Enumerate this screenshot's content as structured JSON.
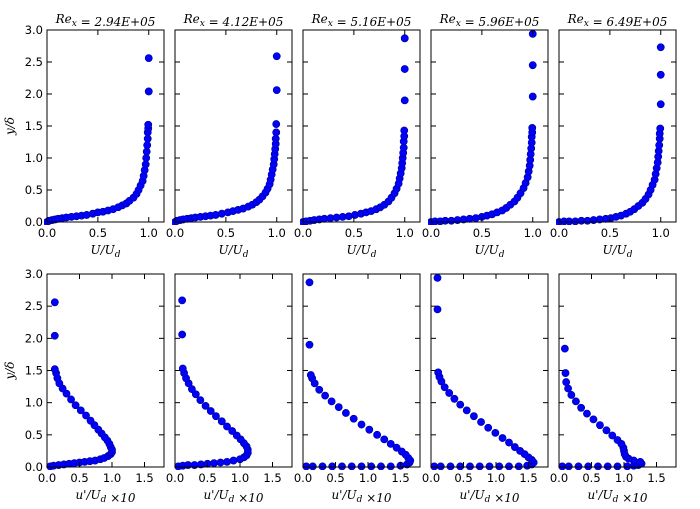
{
  "figure": {
    "colors": {
      "marker_fill": "#0000ff",
      "marker_edge": "#00008b",
      "axes": "#000000",
      "background": "#ffffff"
    }
  },
  "chart_data": [
    {
      "type": "scatter",
      "row": "top",
      "title": "Re_x = 2.94E+05",
      "title_text": "Rex = 2.94E+05",
      "xlabel": "U/U_d",
      "ylabel": "y/δ",
      "xlim": [
        0,
        1.15
      ],
      "ylim": [
        0,
        3.0
      ],
      "xticks": [
        0.0,
        0.5,
        1.0
      ],
      "xtick_labels": [
        "0.0",
        "0.5",
        "1.0"
      ],
      "yticks": [
        0.0,
        0.5,
        1.0,
        1.5,
        2.0,
        2.5,
        3.0
      ],
      "ytick_labels": [
        "0.0",
        "0.5",
        "1.0",
        "1.5",
        "2.0",
        "2.5",
        "3.0"
      ],
      "x": [
        0.0,
        0.02,
        0.05,
        0.08,
        0.11,
        0.15,
        0.19,
        0.24,
        0.29,
        0.34,
        0.39,
        0.45,
        0.5,
        0.55,
        0.6,
        0.65,
        0.7,
        0.74,
        0.78,
        0.81,
        0.85,
        0.88,
        0.9,
        0.92,
        0.94,
        0.95,
        0.96,
        0.97,
        0.975,
        0.98,
        0.985,
        0.99,
        0.99,
        0.995,
        0.995,
        1.0,
        1.0
      ],
      "y": [
        0.0,
        0.02,
        0.03,
        0.04,
        0.05,
        0.06,
        0.07,
        0.08,
        0.09,
        0.1,
        0.11,
        0.13,
        0.15,
        0.16,
        0.18,
        0.2,
        0.23,
        0.26,
        0.29,
        0.33,
        0.38,
        0.44,
        0.5,
        0.57,
        0.64,
        0.72,
        0.81,
        0.9,
        1.0,
        1.1,
        1.2,
        1.3,
        1.4,
        1.46,
        1.52,
        2.04,
        2.56
      ]
    },
    {
      "type": "scatter",
      "row": "top",
      "title": "Re_x = 4.12E+05",
      "title_text": "Rex = 4.12E+05",
      "xlabel": "U/U_d",
      "ylabel": "",
      "xlim": [
        0,
        1.15
      ],
      "ylim": [
        0,
        3.0
      ],
      "xticks": [
        0.0,
        0.5,
        1.0
      ],
      "xtick_labels": [
        "0.0",
        "0.5",
        "1.0"
      ],
      "yticks": [
        0.0,
        0.5,
        1.0,
        1.5,
        2.0,
        2.5,
        3.0
      ],
      "ytick_labels": [],
      "x": [
        0.0,
        0.02,
        0.05,
        0.08,
        0.12,
        0.16,
        0.2,
        0.25,
        0.3,
        0.35,
        0.4,
        0.46,
        0.52,
        0.57,
        0.62,
        0.67,
        0.72,
        0.76,
        0.8,
        0.83,
        0.86,
        0.89,
        0.91,
        0.93,
        0.94,
        0.95,
        0.96,
        0.97,
        0.975,
        0.98,
        0.985,
        0.99,
        0.99,
        0.995,
        0.995,
        1.0,
        1.0
      ],
      "y": [
        0.0,
        0.02,
        0.03,
        0.04,
        0.05,
        0.06,
        0.07,
        0.08,
        0.09,
        0.1,
        0.11,
        0.13,
        0.15,
        0.17,
        0.19,
        0.21,
        0.24,
        0.27,
        0.31,
        0.35,
        0.4,
        0.46,
        0.52,
        0.59,
        0.66,
        0.74,
        0.82,
        0.9,
        0.98,
        1.06,
        1.14,
        1.22,
        1.3,
        1.4,
        1.53,
        2.06,
        2.59
      ]
    },
    {
      "type": "scatter",
      "row": "top",
      "title": "Re_x = 5.16E+05",
      "title_text": "Rex = 5.16E+05",
      "xlabel": "U/U_d",
      "ylabel": "",
      "xlim": [
        0,
        1.15
      ],
      "ylim": [
        0,
        3.0
      ],
      "xticks": [
        0.0,
        0.5,
        1.0
      ],
      "xtick_labels": [
        "0.0",
        "0.5",
        "1.0"
      ],
      "yticks": [
        0.0,
        0.5,
        1.0,
        1.5,
        2.0,
        2.5,
        3.0
      ],
      "ytick_labels": [],
      "x": [
        0.0,
        0.03,
        0.07,
        0.11,
        0.16,
        0.21,
        0.27,
        0.33,
        0.39,
        0.45,
        0.51,
        0.57,
        0.62,
        0.67,
        0.72,
        0.76,
        0.8,
        0.84,
        0.87,
        0.9,
        0.92,
        0.94,
        0.95,
        0.96,
        0.97,
        0.975,
        0.98,
        0.985,
        0.99,
        0.99,
        0.995,
        0.995,
        1.0,
        1.0,
        1.0
      ],
      "y": [
        0.0,
        0.01,
        0.02,
        0.03,
        0.04,
        0.05,
        0.06,
        0.07,
        0.08,
        0.09,
        0.11,
        0.13,
        0.15,
        0.17,
        0.2,
        0.23,
        0.27,
        0.32,
        0.38,
        0.45,
        0.52,
        0.6,
        0.68,
        0.76,
        0.84,
        0.92,
        1.0,
        1.08,
        1.16,
        1.26,
        1.34,
        1.43,
        1.9,
        2.39,
        2.87
      ]
    },
    {
      "type": "scatter",
      "row": "top",
      "title": "Re_x = 5.96E+05",
      "title_text": "Rex = 5.96E+05",
      "xlabel": "U/U_d",
      "ylabel": "",
      "xlim": [
        0,
        1.15
      ],
      "ylim": [
        0,
        3.0
      ],
      "xticks": [
        0.0,
        0.5,
        1.0
      ],
      "xtick_labels": [
        "0.0",
        "0.5",
        "1.0"
      ],
      "yticks": [
        0.0,
        0.5,
        1.0,
        1.5,
        2.0,
        2.5,
        3.0
      ],
      "ytick_labels": [],
      "x": [
        0.0,
        0.04,
        0.09,
        0.14,
        0.2,
        0.26,
        0.32,
        0.38,
        0.44,
        0.5,
        0.55,
        0.6,
        0.65,
        0.7,
        0.74,
        0.78,
        0.82,
        0.85,
        0.88,
        0.91,
        0.93,
        0.95,
        0.96,
        0.97,
        0.975,
        0.98,
        0.985,
        0.99,
        0.99,
        0.995,
        0.995,
        1.0,
        1.0,
        1.0
      ],
      "y": [
        0.0,
        0.01,
        0.01,
        0.02,
        0.02,
        0.03,
        0.04,
        0.05,
        0.06,
        0.08,
        0.1,
        0.12,
        0.15,
        0.18,
        0.22,
        0.27,
        0.32,
        0.38,
        0.45,
        0.53,
        0.61,
        0.7,
        0.79,
        0.88,
        0.97,
        1.06,
        1.15,
        1.24,
        1.33,
        1.4,
        1.47,
        1.96,
        2.45,
        2.94
      ]
    },
    {
      "type": "scatter",
      "row": "top",
      "title": "Re_x = 6.49E+05",
      "title_text": "Rex = 6.49E+05",
      "xlabel": "U/U_d",
      "ylabel": "",
      "xlim": [
        0,
        1.15
      ],
      "ylim": [
        0,
        3.0
      ],
      "xticks": [
        0.0,
        0.5,
        1.0
      ],
      "xtick_labels": [
        "0.0",
        "0.5",
        "1.0"
      ],
      "yticks": [
        0.0,
        0.5,
        1.0,
        1.5,
        2.0,
        2.5,
        3.0
      ],
      "ytick_labels": [],
      "x": [
        0.0,
        0.05,
        0.1,
        0.16,
        0.22,
        0.28,
        0.34,
        0.4,
        0.46,
        0.51,
        0.56,
        0.61,
        0.66,
        0.7,
        0.74,
        0.78,
        0.82,
        0.85,
        0.88,
        0.9,
        0.92,
        0.94,
        0.95,
        0.96,
        0.97,
        0.975,
        0.98,
        0.985,
        0.99,
        0.99,
        0.995,
        1.0,
        1.0,
        1.0
      ],
      "y": [
        0.0,
        0.01,
        0.01,
        0.01,
        0.02,
        0.02,
        0.03,
        0.04,
        0.05,
        0.06,
        0.08,
        0.1,
        0.13,
        0.16,
        0.2,
        0.25,
        0.3,
        0.36,
        0.43,
        0.5,
        0.58,
        0.66,
        0.75,
        0.84,
        0.93,
        1.02,
        1.11,
        1.2,
        1.3,
        1.38,
        1.46,
        1.84,
        2.3,
        2.73
      ]
    },
    {
      "type": "scatter",
      "row": "bottom",
      "title": "",
      "title_text": "",
      "xlabel": "u'/U_d ×10",
      "ylabel": "y/δ",
      "xlim": [
        0,
        1.8
      ],
      "ylim": [
        0,
        3.0
      ],
      "xticks": [
        0.0,
        0.5,
        1.0,
        1.5
      ],
      "xtick_labels": [
        "0.0",
        "0.5",
        "1.0",
        "1.5"
      ],
      "yticks": [
        0.0,
        0.5,
        1.0,
        1.5,
        2.0,
        2.5,
        3.0
      ],
      "ytick_labels": [
        "0.0",
        "0.5",
        "1.0",
        "1.5",
        "2.0",
        "2.5",
        "3.0"
      ],
      "x": [
        0.05,
        0.1,
        0.18,
        0.26,
        0.34,
        0.42,
        0.5,
        0.58,
        0.66,
        0.74,
        0.82,
        0.88,
        0.94,
        0.98,
        1.0,
        1.0,
        0.98,
        0.96,
        0.93,
        0.89,
        0.84,
        0.79,
        0.73,
        0.67,
        0.6,
        0.52,
        0.44,
        0.37,
        0.3,
        0.24,
        0.19,
        0.16,
        0.14,
        0.12,
        0.12,
        0.12
      ],
      "y": [
        0.01,
        0.02,
        0.03,
        0.04,
        0.05,
        0.06,
        0.07,
        0.08,
        0.09,
        0.1,
        0.12,
        0.14,
        0.17,
        0.2,
        0.23,
        0.27,
        0.31,
        0.36,
        0.41,
        0.46,
        0.52,
        0.58,
        0.65,
        0.72,
        0.8,
        0.88,
        0.96,
        1.05,
        1.14,
        1.22,
        1.3,
        1.38,
        1.46,
        1.52,
        2.04,
        2.56
      ]
    },
    {
      "type": "scatter",
      "row": "bottom",
      "title": "",
      "title_text": "",
      "xlabel": "u'/U_d ×10",
      "ylabel": "",
      "xlim": [
        0,
        1.8
      ],
      "ylim": [
        0,
        3.0
      ],
      "xticks": [
        0.0,
        0.5,
        1.0,
        1.5
      ],
      "xtick_labels": [
        "0.0",
        "0.5",
        "1.0",
        "1.5"
      ],
      "yticks": [
        0.0,
        0.5,
        1.0,
        1.5,
        2.0,
        2.5,
        3.0
      ],
      "ytick_labels": [],
      "x": [
        0.05,
        0.12,
        0.2,
        0.3,
        0.4,
        0.5,
        0.6,
        0.7,
        0.8,
        0.9,
        1.0,
        1.06,
        1.1,
        1.12,
        1.12,
        1.1,
        1.06,
        1.01,
        0.95,
        0.88,
        0.8,
        0.72,
        0.63,
        0.55,
        0.47,
        0.39,
        0.32,
        0.26,
        0.21,
        0.17,
        0.14,
        0.12,
        0.11,
        0.11
      ],
      "y": [
        0.01,
        0.02,
        0.03,
        0.03,
        0.04,
        0.05,
        0.06,
        0.07,
        0.08,
        0.1,
        0.12,
        0.15,
        0.18,
        0.22,
        0.27,
        0.32,
        0.37,
        0.43,
        0.49,
        0.56,
        0.63,
        0.71,
        0.79,
        0.87,
        0.95,
        1.04,
        1.13,
        1.21,
        1.3,
        1.38,
        1.46,
        1.53,
        2.06,
        2.59
      ]
    },
    {
      "type": "scatter",
      "row": "bottom",
      "title": "",
      "title_text": "",
      "xlabel": "u'/U_d ×10",
      "ylabel": "",
      "xlim": [
        0,
        1.8
      ],
      "ylim": [
        0,
        3.0
      ],
      "xticks": [
        0.0,
        0.5,
        1.0,
        1.5
      ],
      "xtick_labels": [
        "0.0",
        "0.5",
        "1.0",
        "1.5"
      ],
      "yticks": [
        0.0,
        0.5,
        1.0,
        1.5,
        2.0,
        2.5,
        3.0
      ],
      "ytick_labels": [],
      "x": [
        0.05,
        0.15,
        0.3,
        0.45,
        0.6,
        0.75,
        0.9,
        1.05,
        1.2,
        1.35,
        1.5,
        1.6,
        1.64,
        1.65,
        1.62,
        1.58,
        1.52,
        1.44,
        1.35,
        1.25,
        1.14,
        1.02,
        0.9,
        0.78,
        0.66,
        0.55,
        0.44,
        0.34,
        0.25,
        0.18,
        0.14,
        0.12,
        0.1,
        0.1
      ],
      "y": [
        0.01,
        0.01,
        0.01,
        0.01,
        0.01,
        0.01,
        0.01,
        0.01,
        0.01,
        0.01,
        0.02,
        0.04,
        0.07,
        0.1,
        0.14,
        0.19,
        0.24,
        0.3,
        0.36,
        0.43,
        0.5,
        0.58,
        0.66,
        0.75,
        0.84,
        0.93,
        1.02,
        1.11,
        1.2,
        1.3,
        1.38,
        1.43,
        1.9,
        2.87
      ]
    },
    {
      "type": "scatter",
      "row": "bottom",
      "title": "",
      "title_text": "",
      "xlabel": "u'/U_d ×10",
      "ylabel": "",
      "xlim": [
        0,
        1.8
      ],
      "ylim": [
        0,
        3.0
      ],
      "xticks": [
        0.0,
        0.5,
        1.0,
        1.5
      ],
      "xtick_labels": [
        "0.0",
        "0.5",
        "1.0",
        "1.5"
      ],
      "yticks": [
        0.0,
        0.5,
        1.0,
        1.5,
        2.0,
        2.5,
        3.0
      ],
      "ytick_labels": [],
      "x": [
        0.05,
        0.15,
        0.3,
        0.45,
        0.6,
        0.75,
        0.9,
        1.05,
        1.2,
        1.35,
        1.48,
        1.55,
        1.58,
        1.55,
        1.5,
        1.44,
        1.37,
        1.29,
        1.2,
        1.1,
        0.99,
        0.88,
        0.77,
        0.66,
        0.55,
        0.45,
        0.36,
        0.28,
        0.21,
        0.16,
        0.13,
        0.11,
        0.1,
        0.1
      ],
      "y": [
        0.01,
        0.01,
        0.01,
        0.01,
        0.01,
        0.01,
        0.01,
        0.01,
        0.01,
        0.01,
        0.02,
        0.04,
        0.07,
        0.11,
        0.15,
        0.2,
        0.25,
        0.31,
        0.38,
        0.45,
        0.53,
        0.61,
        0.7,
        0.79,
        0.88,
        0.97,
        1.06,
        1.15,
        1.24,
        1.33,
        1.4,
        1.47,
        2.45,
        2.94
      ]
    },
    {
      "type": "scatter",
      "row": "bottom",
      "title": "",
      "title_text": "",
      "xlabel": "u'/U_d ×10",
      "ylabel": "",
      "xlim": [
        0,
        1.8
      ],
      "ylim": [
        0,
        3.0
      ],
      "xticks": [
        0.0,
        0.5,
        1.0,
        1.5
      ],
      "xtick_labels": [
        "0.0",
        "0.5",
        "1.0",
        "1.5"
      ],
      "yticks": [
        0.0,
        0.5,
        1.0,
        1.5,
        2.0,
        2.5,
        3.0
      ],
      "ytick_labels": [],
      "x": [
        0.05,
        0.15,
        0.3,
        0.45,
        0.6,
        0.75,
        0.9,
        1.05,
        1.15,
        1.22,
        1.27,
        1.25,
        1.15,
        1.07,
        1.03,
        1.01,
        1.0,
        0.99,
        0.96,
        0.9,
        0.82,
        0.73,
        0.63,
        0.53,
        0.43,
        0.34,
        0.26,
        0.19,
        0.14,
        0.11,
        0.1,
        0.09
      ],
      "y": [
        0.01,
        0.01,
        0.01,
        0.01,
        0.01,
        0.01,
        0.01,
        0.01,
        0.02,
        0.03,
        0.05,
        0.08,
        0.1,
        0.13,
        0.16,
        0.2,
        0.25,
        0.3,
        0.36,
        0.42,
        0.49,
        0.57,
        0.65,
        0.74,
        0.83,
        0.92,
        1.02,
        1.12,
        1.22,
        1.32,
        1.46,
        1.84
      ]
    }
  ]
}
